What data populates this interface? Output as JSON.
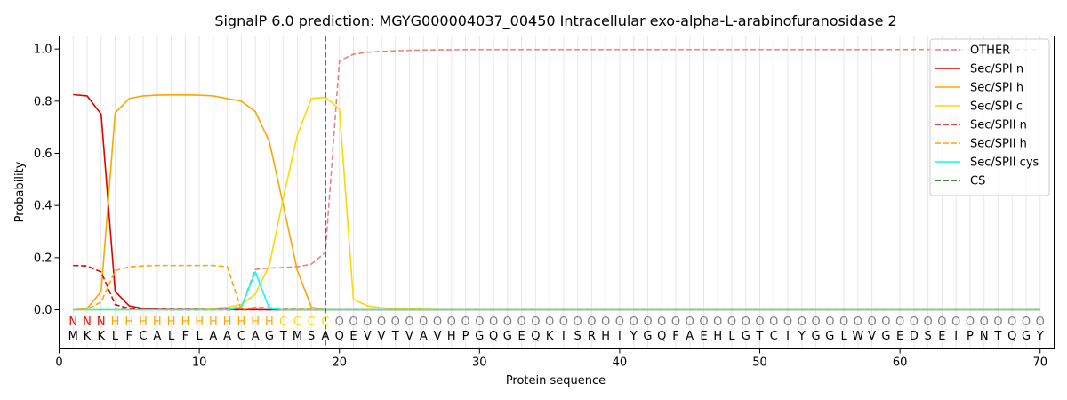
{
  "chart_data": {
    "type": "line",
    "title": "SignalP 6.0 prediction: MGYG000004037_00450 Intracellular exo-alpha-L-arabinofuranosidase 2",
    "xlabel": "Protein sequence",
    "ylabel": "Probability",
    "xlim": [
      0,
      71
    ],
    "ylim": [
      -0.15,
      1.05
    ],
    "xticks": [
      0,
      10,
      20,
      30,
      40,
      50,
      60,
      70
    ],
    "yticks": [
      0.0,
      0.2,
      0.4,
      0.6,
      0.8,
      1.0
    ],
    "ytick_labels": [
      "0.0",
      "0.2",
      "0.4",
      "0.6",
      "0.8",
      "1.0"
    ],
    "grid": "vertical lines at each residue",
    "legend_position": "top-right",
    "cleavage_site": 19,
    "sequence": [
      "M",
      "K",
      "K",
      "L",
      "F",
      "C",
      "A",
      "L",
      "F",
      "L",
      "A",
      "A",
      "C",
      "A",
      "G",
      "T",
      "M",
      "S",
      "A",
      "Q",
      "E",
      "V",
      "V",
      "T",
      "V",
      "A",
      "V",
      "H",
      "P",
      "G",
      "Q",
      "G",
      "E",
      "Q",
      "K",
      "I",
      "S",
      "R",
      "H",
      "I",
      "Y",
      "G",
      "Q",
      "F",
      "A",
      "E",
      "H",
      "L",
      "G",
      "T",
      "C",
      "I",
      "Y",
      "G",
      "G",
      "L",
      "W",
      "V",
      "G",
      "E",
      "D",
      "S",
      "E",
      "I",
      "P",
      "N",
      "T",
      "Q",
      "G",
      "Y"
    ],
    "labels": [
      "N",
      "N",
      "N",
      "H",
      "H",
      "H",
      "H",
      "H",
      "H",
      "H",
      "H",
      "H",
      "H",
      "H",
      "H",
      "C",
      "C",
      "C",
      "C",
      "O",
      "O",
      "O",
      "O",
      "O",
      "O",
      "O",
      "O",
      "O",
      "O",
      "O",
      "O",
      "O",
      "O",
      "O",
      "O",
      "O",
      "O",
      "O",
      "O",
      "O",
      "O",
      "O",
      "O",
      "O",
      "O",
      "O",
      "O",
      "O",
      "O",
      "O",
      "O",
      "O",
      "O",
      "O",
      "O",
      "O",
      "O",
      "O",
      "O",
      "O",
      "O",
      "O",
      "O",
      "O",
      "O",
      "O",
      "O",
      "O",
      "O",
      "O"
    ],
    "label_colors": {
      "N": "#ff0000",
      "H": "#ffa500",
      "C": "#ffd700",
      "O": "#808080"
    },
    "series": [
      {
        "name": "OTHER",
        "color": "#f08080",
        "dash": "dashed",
        "values": [
          0.0,
          0.0,
          0.0,
          0.0,
          0.005,
          0.005,
          0.005,
          0.005,
          0.005,
          0.005,
          0.005,
          0.005,
          0.01,
          0.155,
          0.16,
          0.162,
          0.165,
          0.175,
          0.22,
          0.955,
          0.98,
          0.988,
          0.991,
          0.993,
          0.995,
          0.996,
          0.997,
          0.997,
          0.998,
          0.998,
          0.998,
          0.998,
          0.998,
          0.998,
          0.998,
          0.998,
          0.998,
          0.998,
          0.998,
          0.998,
          0.998,
          0.998,
          0.998,
          0.998,
          0.998,
          0.998,
          0.998,
          0.998,
          0.998,
          0.998,
          0.998,
          0.998,
          0.998,
          0.998,
          0.998,
          0.998,
          0.998,
          0.998,
          0.998,
          0.998,
          0.998,
          0.998,
          0.998,
          0.998,
          0.998,
          0.998,
          0.998,
          0.998,
          0.998,
          0.998
        ]
      },
      {
        "name": "Sec/SPI n",
        "color": "#e00000",
        "dash": "solid",
        "values": [
          0.825,
          0.82,
          0.75,
          0.07,
          0.015,
          0.005,
          0.002,
          0.001,
          0.001,
          0.001,
          0.001,
          0.001,
          0.001,
          0.001,
          0.0,
          0.0,
          0.0,
          0.0,
          0.0,
          0.0,
          0.0,
          0.0,
          0.0,
          0.0,
          0.0,
          0.0,
          0.0,
          0.0,
          0.0,
          0.0,
          0.0,
          0.0,
          0.0,
          0.0,
          0.0,
          0.0,
          0.0,
          0.0,
          0.0,
          0.0,
          0.0,
          0.0,
          0.0,
          0.0,
          0.0,
          0.0,
          0.0,
          0.0,
          0.0,
          0.0,
          0.0,
          0.0,
          0.0,
          0.0,
          0.0,
          0.0,
          0.0,
          0.0,
          0.0,
          0.0,
          0.0,
          0.0,
          0.0,
          0.0,
          0.0,
          0.0,
          0.0,
          0.0,
          0.0,
          0.0
        ]
      },
      {
        "name": "Sec/SPI h",
        "color": "#ffa500",
        "dash": "solid",
        "values": [
          0.0,
          0.005,
          0.07,
          0.755,
          0.81,
          0.82,
          0.823,
          0.824,
          0.824,
          0.823,
          0.82,
          0.81,
          0.8,
          0.76,
          0.645,
          0.4,
          0.15,
          0.01,
          0.0,
          0.0,
          0.0,
          0.0,
          0.0,
          0.0,
          0.0,
          0.0,
          0.0,
          0.0,
          0.0,
          0.0,
          0.0,
          0.0,
          0.0,
          0.0,
          0.0,
          0.0,
          0.0,
          0.0,
          0.0,
          0.0,
          0.0,
          0.0,
          0.0,
          0.0,
          0.0,
          0.0,
          0.0,
          0.0,
          0.0,
          0.0,
          0.0,
          0.0,
          0.0,
          0.0,
          0.0,
          0.0,
          0.0,
          0.0,
          0.0,
          0.0,
          0.0,
          0.0,
          0.0,
          0.0,
          0.0,
          0.0,
          0.0,
          0.0,
          0.0,
          0.0
        ]
      },
      {
        "name": "Sec/SPI c",
        "color": "#ffd700",
        "dash": "solid",
        "values": [
          0.0,
          0.0,
          0.0,
          0.0,
          0.0,
          0.0,
          0.0,
          0.0,
          0.0,
          0.0,
          0.005,
          0.01,
          0.02,
          0.06,
          0.17,
          0.43,
          0.67,
          0.81,
          0.815,
          0.77,
          0.04,
          0.015,
          0.008,
          0.005,
          0.003,
          0.002,
          0.001,
          0.0,
          0.0,
          0.0,
          0.0,
          0.0,
          0.0,
          0.0,
          0.0,
          0.0,
          0.0,
          0.0,
          0.0,
          0.0,
          0.0,
          0.0,
          0.0,
          0.0,
          0.0,
          0.0,
          0.0,
          0.0,
          0.0,
          0.0,
          0.0,
          0.0,
          0.0,
          0.0,
          0.0,
          0.0,
          0.0,
          0.0,
          0.0,
          0.0,
          0.0,
          0.0,
          0.0,
          0.0,
          0.0,
          0.0,
          0.0,
          0.0,
          0.0,
          0.0
        ]
      },
      {
        "name": "Sec/SPII n",
        "color": "#e00000",
        "dash": "dashed",
        "values": [
          0.17,
          0.168,
          0.145,
          0.02,
          0.005,
          0.002,
          0.001,
          0.0,
          0.0,
          0.0,
          0.0,
          0.0,
          0.0,
          0.0,
          0.0,
          0.0,
          0.0,
          0.0,
          0.0,
          0.0,
          0.0,
          0.0,
          0.0,
          0.0,
          0.0,
          0.0,
          0.0,
          0.0,
          0.0,
          0.0,
          0.0,
          0.0,
          0.0,
          0.0,
          0.0,
          0.0,
          0.0,
          0.0,
          0.0,
          0.0,
          0.0,
          0.0,
          0.0,
          0.0,
          0.0,
          0.0,
          0.0,
          0.0,
          0.0,
          0.0,
          0.0,
          0.0,
          0.0,
          0.0,
          0.0,
          0.0,
          0.0,
          0.0,
          0.0,
          0.0,
          0.0,
          0.0,
          0.0,
          0.0,
          0.0,
          0.0,
          0.0,
          0.0,
          0.0,
          0.0
        ]
      },
      {
        "name": "Sec/SPII h",
        "color": "#ffa500",
        "dash": "dashed",
        "values": [
          0.0,
          0.002,
          0.03,
          0.15,
          0.165,
          0.168,
          0.17,
          0.17,
          0.17,
          0.17,
          0.17,
          0.165,
          0.0,
          0.01,
          0.008,
          0.006,
          0.005,
          0.003,
          0.0,
          0.0,
          0.0,
          0.0,
          0.0,
          0.0,
          0.0,
          0.0,
          0.0,
          0.0,
          0.0,
          0.0,
          0.0,
          0.0,
          0.0,
          0.0,
          0.0,
          0.0,
          0.0,
          0.0,
          0.0,
          0.0,
          0.0,
          0.0,
          0.0,
          0.0,
          0.0,
          0.0,
          0.0,
          0.0,
          0.0,
          0.0,
          0.0,
          0.0,
          0.0,
          0.0,
          0.0,
          0.0,
          0.0,
          0.0,
          0.0,
          0.0,
          0.0,
          0.0,
          0.0,
          0.0,
          0.0,
          0.0,
          0.0,
          0.0,
          0.0,
          0.0
        ]
      },
      {
        "name": "Sec/SPII cys",
        "color": "#00ffff",
        "dash": "solid",
        "values": [
          0.0,
          0.0,
          0.0,
          0.0,
          0.0,
          0.0,
          0.0,
          0.0,
          0.0,
          0.0,
          0.0,
          0.0,
          0.01,
          0.145,
          0.005,
          0.0,
          0.0,
          0.0,
          0.0,
          0.0,
          0.0,
          0.0,
          0.0,
          0.0,
          0.0,
          0.0,
          0.0,
          0.0,
          0.0,
          0.0,
          0.0,
          0.0,
          0.0,
          0.0,
          0.0,
          0.0,
          0.0,
          0.0,
          0.0,
          0.0,
          0.0,
          0.0,
          0.0,
          0.0,
          0.0,
          0.0,
          0.0,
          0.0,
          0.0,
          0.0,
          0.0,
          0.0,
          0.0,
          0.0,
          0.0,
          0.0,
          0.0,
          0.0,
          0.0,
          0.0,
          0.0,
          0.0,
          0.0,
          0.0,
          0.0,
          0.0,
          0.0,
          0.0,
          0.0,
          0.0
        ]
      }
    ],
    "cs_legend": {
      "name": "CS",
      "color": "#006400",
      "dash": "dashed"
    }
  }
}
